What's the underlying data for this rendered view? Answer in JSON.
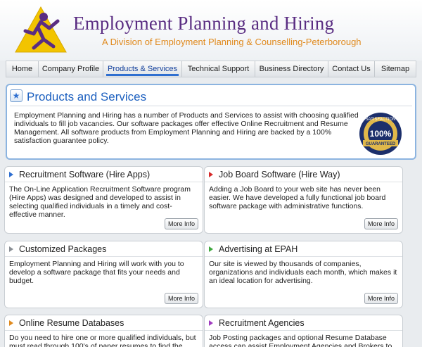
{
  "header": {
    "title": "Employment Planning and Hiring",
    "subtitle": "A Division of Employment Planning & Counselling-Peterborough"
  },
  "nav": {
    "items": [
      "Home",
      "Company Profile",
      "Products & Services",
      "Technical Support",
      "Business Directory",
      "Contact Us",
      "Sitemap"
    ],
    "active": "Products & Services"
  },
  "intro": {
    "title": "Products and Services",
    "text": "Employment Planning and Hiring has a number of Products and Services to assist with choosing qualified individuals to fill job vacancies. Our software packages offer effective Online Recruitment and Resume Management. All software products from Employment Planning and Hiring are backed by a 100% satisfaction guarantee policy.",
    "seal": {
      "top": "SATISFACTION",
      "center": "100%",
      "bottom": "GUARANTEED"
    }
  },
  "cards": [
    {
      "title": "Recruitment Software (Hire Apps)",
      "text": "The On-Line Application Recruitment Software program (Hire Apps) was designed and developed to assist in selecting qualified individuals in a timely and cost-effective manner.",
      "button": "More Info",
      "arrow_color": "#2f6fd0"
    },
    {
      "title": "Job Board Software (Hire Way)",
      "text": "Adding a Job Board to your web site has never been easier. We have developed a fully functional job board software package with administrative functions.",
      "button": "More Info",
      "arrow_color": "#d62b2b"
    },
    {
      "title": "Customized Packages",
      "text": "Employment Planning and Hiring will work with you to develop a software package that fits your needs and budget.",
      "button": "More Info",
      "arrow_color": "#8a8f95"
    },
    {
      "title": "Advertising at EPAH",
      "text": "Our site is viewed by thousands of companies, organizations and individuals each month, which makes it an ideal location for advertising.",
      "button": "More Info",
      "arrow_color": "#3fa83f"
    },
    {
      "title": "Online Resume Databases",
      "text": "Do you need to hire one or more qualified individuals, but must read through 100's of paper resumes to find the",
      "button": "",
      "arrow_color": "#e08a1e"
    },
    {
      "title": "Recruitment Agencies",
      "text": "Job Posting packages and optional Resume Database access can assist Employment Agencies and Brokers to achieve their",
      "button": "",
      "arrow_color": "#a03cc0"
    }
  ]
}
